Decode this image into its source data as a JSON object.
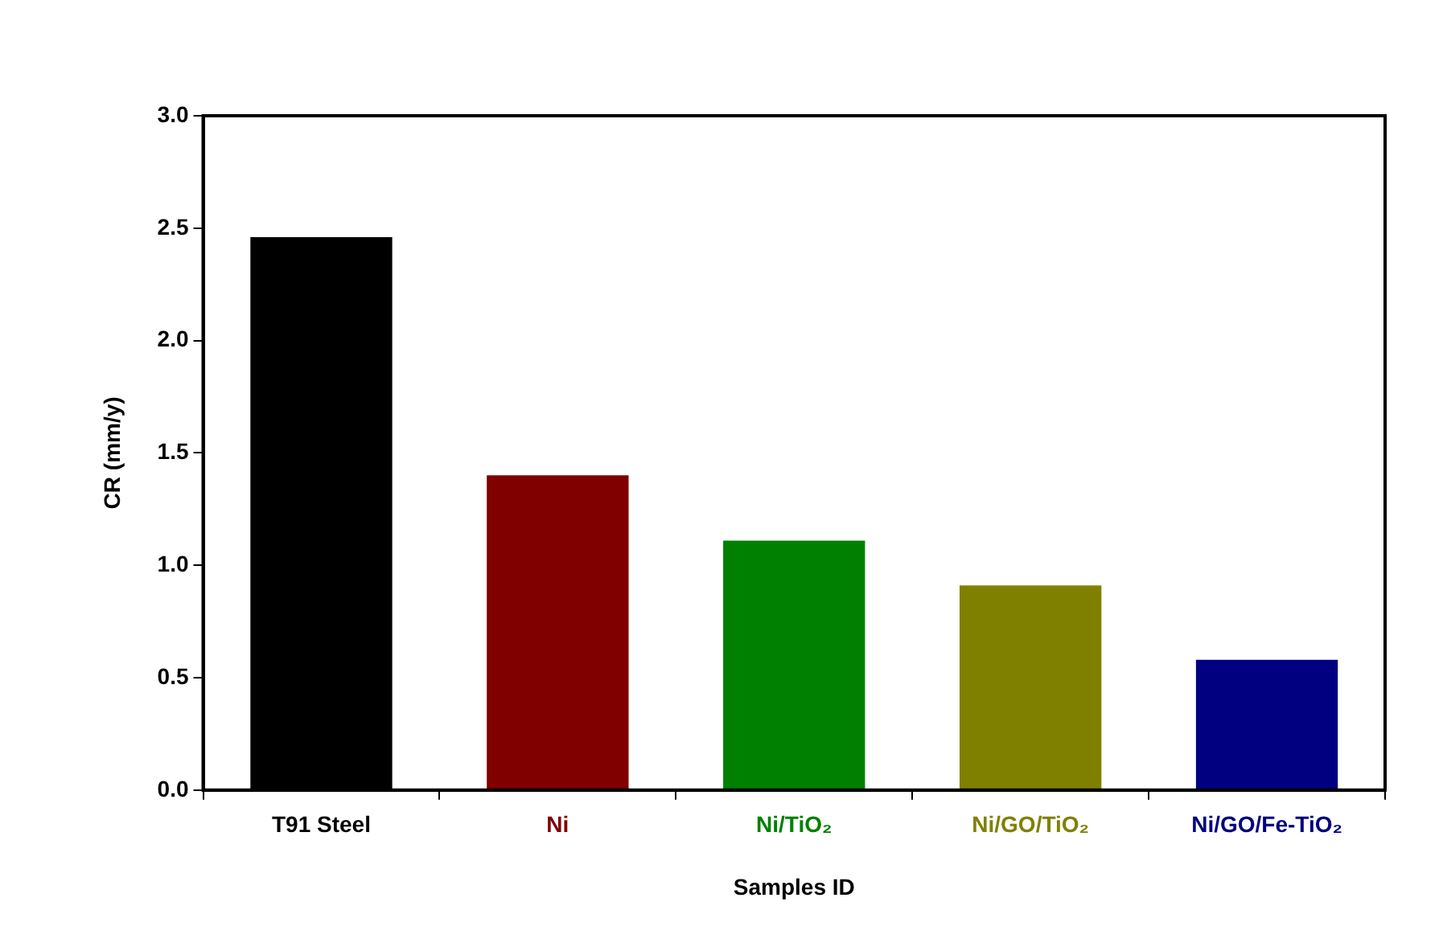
{
  "chart_data": {
    "type": "bar",
    "xlabel": "Samples ID",
    "ylabel": "CR (mm/y)",
    "categories": [
      "T91 Steel",
      "Ni",
      "Ni/TiO₂",
      "Ni/GO/TiO₂",
      "Ni/GO/Fe-TiO₂"
    ],
    "values": [
      2.46,
      1.4,
      1.11,
      0.91,
      0.58
    ],
    "colors": [
      "#000000",
      "#800000",
      "#008000",
      "#808000",
      "#000080"
    ],
    "ylim": [
      0,
      3
    ],
    "yticks": [
      {
        "value": 0,
        "label": "0.0"
      },
      {
        "value": 0.5,
        "label": "0.5"
      },
      {
        "value": 1,
        "label": "1.0"
      },
      {
        "value": 1.5,
        "label": "1.5"
      },
      {
        "value": 2,
        "label": "2.0"
      },
      {
        "value": 2.5,
        "label": "2.5"
      },
      {
        "value": 3,
        "label": "3.0"
      }
    ],
    "grid": false,
    "legend": false
  }
}
